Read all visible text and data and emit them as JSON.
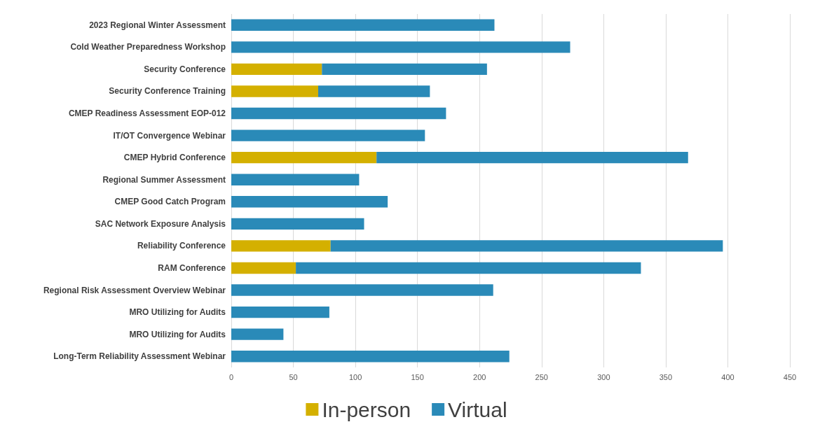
{
  "chart_data": {
    "type": "bar",
    "orientation": "horizontal",
    "stacked": true,
    "categories": [
      "2023 Regional Winter Assessment",
      "Cold Weather Preparedness Workshop",
      "Security Conference",
      "Security Conference Training",
      "CMEP Readiness Assessment EOP-012",
      "IT/OT Convergence Webinar",
      "CMEP Hybrid Conference",
      "Regional Summer Assessment",
      "CMEP Good Catch Program",
      "SAC Network Exposure Analysis",
      "Reliability Conference",
      "RAM Conference",
      "Regional Risk Assessment Overview Webinar",
      "MRO Utilizing for Audits",
      "MRO Utilizing for Audits",
      "Long-Term Reliability Assessment Webinar"
    ],
    "series": [
      {
        "name": "In-person",
        "color": "#d4b000",
        "values": [
          null,
          null,
          73,
          70,
          null,
          null,
          117,
          null,
          null,
          null,
          80,
          52,
          null,
          null,
          null,
          null
        ]
      },
      {
        "name": "Virtual",
        "color": "#2a8ab8",
        "values": [
          212,
          273,
          133,
          90,
          173,
          156,
          251,
          103,
          126,
          107,
          316,
          278,
          211,
          79,
          42,
          224
        ]
      }
    ],
    "xlim": [
      0,
      450
    ],
    "xticks": [
      0,
      50,
      100,
      150,
      200,
      250,
      300,
      350,
      400,
      450
    ],
    "grid": "x",
    "legend": "bottom"
  }
}
